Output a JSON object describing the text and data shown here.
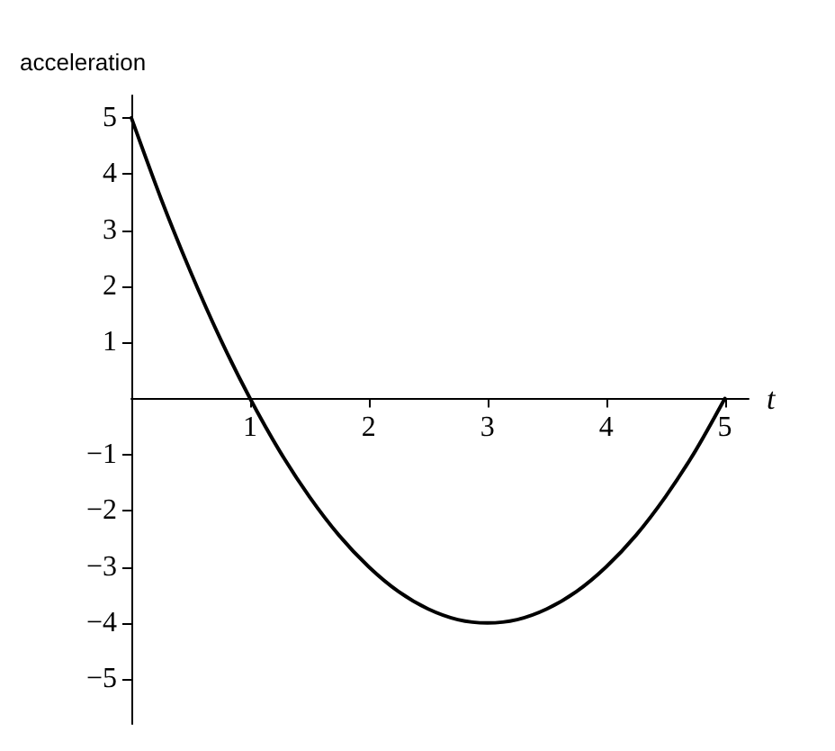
{
  "chart_data": {
    "type": "line",
    "xlabel": "t",
    "ylabel": "acceleration",
    "x": [
      0,
      0.25,
      0.5,
      0.75,
      1,
      1.25,
      1.5,
      1.75,
      2,
      2.25,
      2.5,
      2.75,
      3,
      3.25,
      3.5,
      3.75,
      4,
      4.25,
      4.5,
      4.75,
      5
    ],
    "series": [
      {
        "color": "#000000",
        "values": [
          5,
          3.56,
          2.25,
          1.06,
          0,
          -0.94,
          -1.75,
          -2.44,
          -3,
          -3.44,
          -3.75,
          -3.94,
          -4,
          -3.94,
          -3.75,
          -3.44,
          -3,
          -2.44,
          -1.75,
          -0.94,
          0
        ]
      }
    ],
    "xlim": [
      0,
      5.2
    ],
    "ylim": [
      -5.8,
      5.4
    ],
    "xticks": [
      1,
      2,
      3,
      4,
      5
    ],
    "yticks": [
      {
        "value": -5,
        "label": "−5"
      },
      {
        "value": -4,
        "label": "−4"
      },
      {
        "value": -3,
        "label": "−3"
      },
      {
        "value": -2,
        "label": "−2"
      },
      {
        "value": -1,
        "label": "−1"
      },
      1,
      2,
      3,
      4,
      5
    ],
    "grid": false,
    "marker": "none",
    "line_style": "solid"
  }
}
